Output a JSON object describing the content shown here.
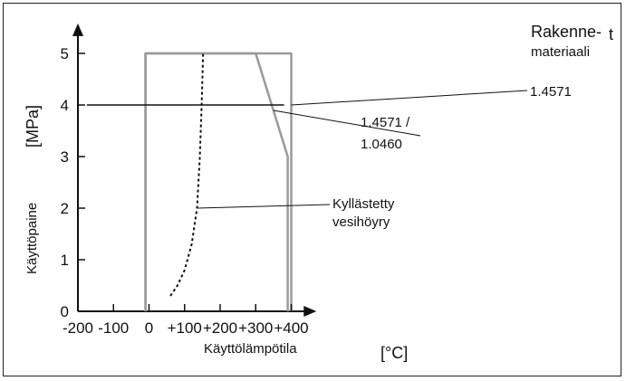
{
  "chart_data": {
    "type": "line",
    "title": "",
    "xlabel": "Käyttölämpötila",
    "xunit": "[°C]",
    "ylabel": "Käyttöpaine",
    "yunit": "[MPa]",
    "xlim": [
      -200,
      430
    ],
    "ylim": [
      0,
      5.3
    ],
    "x_ticks": [
      -200,
      -100,
      0,
      100,
      200,
      300,
      400
    ],
    "x_tick_labels": [
      "-200",
      "-100",
      "0",
      "+100",
      "+200",
      "+300",
      "+400"
    ],
    "y_ticks": [
      0,
      1,
      2,
      3,
      4,
      5
    ],
    "y_tick_labels": [
      "0",
      "1",
      "2",
      "3",
      "4",
      "5"
    ],
    "legend_title_line1": "Rakenne-",
    "legend_title_line1_suffix": "t",
    "legend_title_line2": "materiaali",
    "series": [
      {
        "name": "1.4571",
        "color": "#9a9a9a",
        "style": "solid",
        "points": [
          [
            -10,
            0
          ],
          [
            -10,
            5.0
          ],
          [
            400,
            5.0
          ],
          [
            400,
            0
          ]
        ]
      },
      {
        "name": "1.4571 / 1.0460",
        "color": "#9a9a9a",
        "style": "solid",
        "points": [
          [
            -10,
            0
          ],
          [
            -10,
            5.0
          ],
          [
            300,
            5.0
          ],
          [
            390,
            3.0
          ],
          [
            390,
            0
          ]
        ]
      },
      {
        "name": "Kyllästetty vesihöyry",
        "color": "#111111",
        "style": "dotted",
        "points": [
          [
            60,
            0.3
          ],
          [
            80,
            0.5
          ],
          [
            100,
            0.8
          ],
          [
            120,
            1.3
          ],
          [
            135,
            2.0
          ],
          [
            143,
            3.0
          ],
          [
            148,
            4.0
          ],
          [
            152,
            5.0
          ]
        ]
      },
      {
        "name": "4 MPa",
        "color": "#111111",
        "style": "solid",
        "points": [
          [
            -175,
            4.0
          ],
          [
            380,
            4.0
          ]
        ]
      }
    ],
    "annotations": {
      "label_1_4571": "1.4571",
      "label_mix_line1": "1.4571 /",
      "label_mix_line2": "1.0460",
      "label_steam_line1": "Kyllästetty",
      "label_steam_line2": "vesihöyry"
    }
  }
}
